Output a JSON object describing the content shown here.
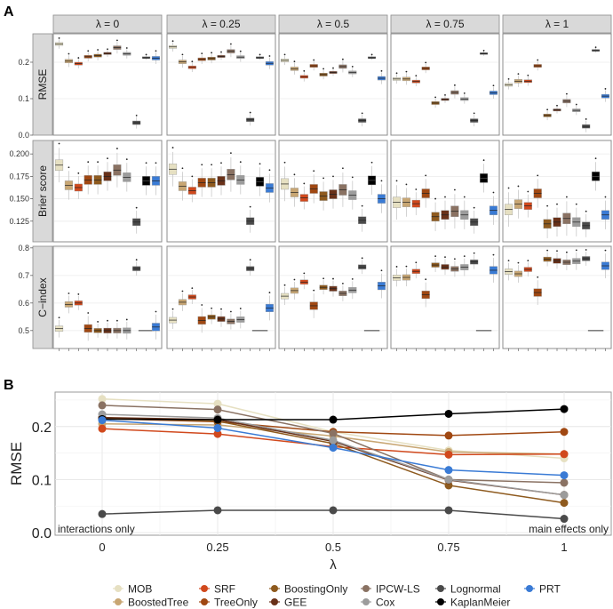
{
  "chart_data": [
    {
      "panel": "A",
      "type": "box",
      "facet_label_prefix": "λ = ",
      "facets": [
        "0",
        "0.25",
        "0.5",
        "0.75",
        "1"
      ],
      "methods": [
        "MOB",
        "BoostedTree",
        "SRF",
        "TreeOnly",
        "BoostingOnly",
        "GEE",
        "IPCW-LS",
        "Cox",
        "Lognormal",
        "KaplanMeier",
        "PRT"
      ],
      "metrics": [
        {
          "name": "RMSE",
          "ylim": [
            0,
            0.278
          ],
          "ticks": [
            0.0,
            0.1,
            0.2
          ],
          "tick_labels": [
            "0.0",
            "0.1",
            "0.2"
          ],
          "iqr_half": [
            0.004,
            0.005,
            0.004,
            0.004,
            0.004,
            0.003,
            0.005,
            0.004,
            0.005,
            0.002,
            0.005
          ],
          "medians": [
            [
              0.25,
              0.203,
              0.196,
              0.215,
              0.218,
              0.224,
              0.24,
              0.223,
              0.034,
              0.213,
              0.211
            ],
            [
              0.242,
              0.201,
              0.186,
              0.208,
              0.21,
              0.216,
              0.23,
              0.214,
              0.042,
              0.213,
              0.197
            ],
            [
              0.205,
              0.182,
              0.16,
              0.19,
              0.166,
              0.172,
              0.188,
              0.172,
              0.04,
              0.213,
              0.156
            ],
            [
              0.154,
              0.154,
              0.147,
              0.183,
              0.088,
              0.098,
              0.117,
              0.099,
              0.04,
              0.224,
              0.116
            ],
            [
              0.138,
              0.148,
              0.148,
              0.19,
              0.054,
              0.069,
              0.093,
              0.068,
              0.024,
              0.233,
              0.107
            ]
          ]
        },
        {
          "name": "Brier score",
          "ylim": [
            0.102,
            0.215
          ],
          "ticks": [
            0.125,
            0.15,
            0.175,
            0.2
          ],
          "tick_labels": [
            "0.125",
            "0.150",
            "0.175",
            "0.200"
          ],
          "iqr_half": [
            0.006,
            0.005,
            0.004,
            0.005,
            0.005,
            0.005,
            0.006,
            0.005,
            0.004,
            0.005,
            0.005
          ],
          "medians": [
            [
              0.1875,
              0.165,
              0.1625,
              0.171,
              0.171,
              0.175,
              0.182,
              0.174,
              0.124,
              0.17,
              0.17
            ],
            [
              0.183,
              0.164,
              0.159,
              0.168,
              0.168,
              0.17,
              0.177,
              0.171,
              0.125,
              0.169,
              0.162
            ],
            [
              0.1665,
              0.157,
              0.151,
              0.161,
              0.153,
              0.155,
              0.16,
              0.154,
              0.126,
              0.1705,
              0.15
            ],
            [
              0.146,
              0.146,
              0.1445,
              0.156,
              0.13,
              0.132,
              0.136,
              0.132,
              0.124,
              0.173,
              0.137
            ],
            [
              0.138,
              0.144,
              0.142,
              0.156,
              0.122,
              0.124,
              0.128,
              0.124,
              0.12,
              0.175,
              0.132
            ]
          ]
        },
        {
          "name": "C−index",
          "ylim": [
            0.435,
            0.806
          ],
          "ticks": [
            0.5,
            0.6,
            0.7,
            0.8
          ],
          "tick_labels": [
            "0.5",
            "0.6",
            "0.7",
            "0.8"
          ],
          "iqr_half": [
            0.01,
            0.01,
            0.008,
            0.014,
            0.008,
            0.009,
            0.009,
            0.01,
            0.008,
            0.0,
            0.014
          ],
          "medians": [
            [
              0.507,
              0.595,
              0.6,
              0.508,
              0.5,
              0.5,
              0.5,
              0.5,
              0.725,
              0.5,
              0.513
            ],
            [
              0.538,
              0.603,
              0.622,
              0.537,
              0.549,
              0.542,
              0.533,
              0.54,
              0.725,
              0.5,
              0.582
            ],
            [
              0.625,
              0.645,
              0.676,
              0.59,
              0.657,
              0.652,
              0.635,
              0.647,
              0.731,
              0.5,
              0.662
            ],
            [
              0.692,
              0.693,
              0.715,
              0.63,
              0.738,
              0.731,
              0.724,
              0.73,
              0.749,
              0.5,
              0.719
            ],
            [
              0.714,
              0.706,
              0.722,
              0.638,
              0.759,
              0.753,
              0.748,
              0.752,
              0.761,
              0.5,
              0.735
            ]
          ]
        }
      ]
    },
    {
      "panel": "B",
      "type": "line",
      "xlabel": "λ",
      "ylabel": "RMSE",
      "x": [
        0,
        0.25,
        0.5,
        0.75,
        1
      ],
      "x_tick_labels": [
        "0",
        "0.25",
        "0.5",
        "0.75",
        "1"
      ],
      "ylim": [
        -0.005,
        0.265
      ],
      "y_ticks": [
        0.0,
        0.1,
        0.2
      ],
      "y_tick_labels": [
        "0.0",
        "0.1",
        "0.2"
      ],
      "annotations": {
        "left": "interactions only",
        "right": "main effects only"
      },
      "series": [
        {
          "name": "MOB",
          "values": [
            0.252,
            0.243,
            0.19,
            0.155,
            0.14
          ]
        },
        {
          "name": "BoostedTree",
          "values": [
            0.205,
            0.203,
            0.182,
            0.152,
            0.148
          ]
        },
        {
          "name": "SRF",
          "values": [
            0.196,
            0.186,
            0.162,
            0.147,
            0.148
          ]
        },
        {
          "name": "TreeOnly",
          "values": [
            0.215,
            0.209,
            0.19,
            0.183,
            0.19
          ]
        },
        {
          "name": "BoostingOnly",
          "values": [
            0.216,
            0.21,
            0.168,
            0.089,
            0.056
          ]
        },
        {
          "name": "GEE",
          "values": [
            0.217,
            0.213,
            0.172,
            0.099,
            0.071
          ]
        },
        {
          "name": "IPCW-LS",
          "values": [
            0.24,
            0.232,
            0.187,
            0.1,
            0.094
          ]
        },
        {
          "name": "Cox",
          "values": [
            0.223,
            0.216,
            0.174,
            0.1,
            0.071
          ]
        },
        {
          "name": "Lognormal",
          "values": [
            0.035,
            0.042,
            0.042,
            0.042,
            0.026
          ]
        },
        {
          "name": "KaplanMeier",
          "values": [
            0.214,
            0.213,
            0.213,
            0.224,
            0.233
          ]
        },
        {
          "name": "PRT",
          "values": [
            0.212,
            0.197,
            0.16,
            0.118,
            0.108
          ]
        }
      ]
    }
  ],
  "panel_labels": [
    "A",
    "B"
  ],
  "colors": {
    "MOB": "#e6e0c2",
    "BoostedTree": "#c8a673",
    "SRF": "#d1491d",
    "TreeOnly": "#a04812",
    "BoostingOnly": "#8e5a1e",
    "GEE": "#693119",
    "IPCW-LS": "#8a7263",
    "Cox": "#9c9c9c",
    "Lognormal": "#4a4a4a",
    "KaplanMeier": "#000000",
    "PRT": "#3a7bd5"
  },
  "legend": [
    [
      "MOB",
      "BoostedTree"
    ],
    [
      "SRF",
      "TreeOnly"
    ],
    [
      "BoostingOnly",
      "GEE"
    ],
    [
      "IPCW-LS",
      "Cox"
    ],
    [
      "Lognormal",
      "KaplanMeier"
    ],
    [
      "PRT"
    ]
  ]
}
